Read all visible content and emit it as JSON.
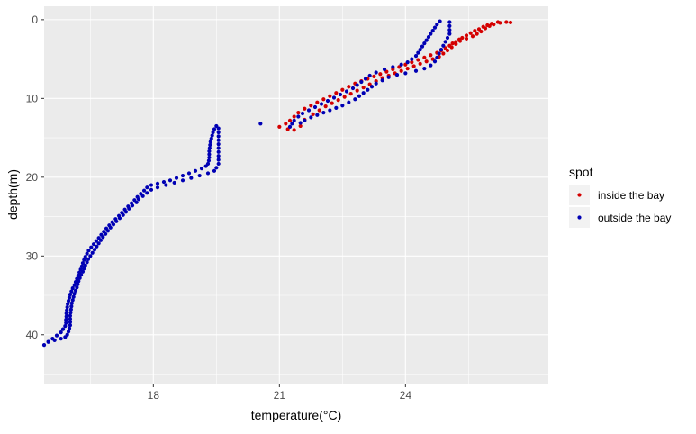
{
  "chart_data": {
    "type": "scatter",
    "title": "",
    "xlabel": "temperature(°C)",
    "ylabel": "depth(m)",
    "xlim": [
      15.4,
      27.4
    ],
    "ylim": [
      46.2,
      -1.7
    ],
    "y_reversed": true,
    "x_ticks": [
      18,
      21,
      24
    ],
    "y_ticks": [
      0,
      10,
      20,
      30,
      40
    ],
    "grid": true,
    "legend": {
      "title": "spot",
      "placement": "right"
    },
    "series": [
      {
        "name": "inside the bay",
        "color": "#D40000",
        "points": [
          [
            26.2,
            0.3
          ],
          [
            26.05,
            0.5
          ],
          [
            25.95,
            0.7
          ],
          [
            25.85,
            0.9
          ],
          [
            25.75,
            1.2
          ],
          [
            25.65,
            1.4
          ],
          [
            25.55,
            1.7
          ],
          [
            25.45,
            2.0
          ],
          [
            25.35,
            2.3
          ],
          [
            25.28,
            2.5
          ],
          [
            25.2,
            2.8
          ],
          [
            25.12,
            3.0
          ],
          [
            25.05,
            3.3
          ],
          [
            24.95,
            3.6
          ],
          [
            24.85,
            3.9
          ],
          [
            24.75,
            4.2
          ],
          [
            24.6,
            4.5
          ],
          [
            24.45,
            4.8
          ],
          [
            24.3,
            5.1
          ],
          [
            24.15,
            5.4
          ],
          [
            24.0,
            5.7
          ],
          [
            23.85,
            6.0
          ],
          [
            23.7,
            6.3
          ],
          [
            23.55,
            6.6
          ],
          [
            23.4,
            6.9
          ],
          [
            23.25,
            7.2
          ],
          [
            23.1,
            7.5
          ],
          [
            22.95,
            7.8
          ],
          [
            22.8,
            8.1
          ],
          [
            22.65,
            8.5
          ],
          [
            22.5,
            8.9
          ],
          [
            22.35,
            9.3
          ],
          [
            22.2,
            9.7
          ],
          [
            22.05,
            10.1
          ],
          [
            21.9,
            10.5
          ],
          [
            21.75,
            10.9
          ],
          [
            21.6,
            11.3
          ],
          [
            21.45,
            11.8
          ],
          [
            21.35,
            12.3
          ],
          [
            21.25,
            12.8
          ],
          [
            21.15,
            13.2
          ],
          [
            21.0,
            13.6
          ],
          [
            21.2,
            13.9
          ],
          [
            21.35,
            14.0
          ],
          [
            21.5,
            13.5
          ],
          [
            21.6,
            12.7
          ],
          [
            21.8,
            12.0
          ],
          [
            21.95,
            11.5
          ],
          [
            22.1,
            11.0
          ],
          [
            22.25,
            10.6
          ],
          [
            22.4,
            10.2
          ],
          [
            22.55,
            9.8
          ],
          [
            22.7,
            9.4
          ],
          [
            22.85,
            9.0
          ],
          [
            23.0,
            8.6
          ],
          [
            23.15,
            8.2
          ],
          [
            23.3,
            7.8
          ],
          [
            23.45,
            7.4
          ],
          [
            23.6,
            7.1
          ],
          [
            23.75,
            6.8
          ],
          [
            23.9,
            6.5
          ],
          [
            24.05,
            6.2
          ],
          [
            24.2,
            5.9
          ],
          [
            24.35,
            5.6
          ],
          [
            24.5,
            5.3
          ],
          [
            24.65,
            5.0
          ],
          [
            24.8,
            4.7
          ],
          [
            24.9,
            4.3
          ],
          [
            25.0,
            3.9
          ],
          [
            25.1,
            3.5
          ],
          [
            25.2,
            3.1
          ],
          [
            25.3,
            2.7
          ],
          [
            25.45,
            2.4
          ],
          [
            25.6,
            2.1
          ],
          [
            25.7,
            1.8
          ],
          [
            25.8,
            1.5
          ],
          [
            25.9,
            1.1
          ],
          [
            26.0,
            0.8
          ],
          [
            26.1,
            0.6
          ],
          [
            26.25,
            0.4
          ],
          [
            26.4,
            0.3
          ],
          [
            26.5,
            0.35
          ]
        ]
      },
      {
        "name": "outside the bay",
        "color": "#0000B4",
        "points": [
          [
            24.82,
            0.2
          ],
          [
            24.75,
            0.6
          ],
          [
            24.7,
            1.0
          ],
          [
            24.65,
            1.4
          ],
          [
            24.6,
            1.8
          ],
          [
            24.55,
            2.2
          ],
          [
            24.5,
            2.6
          ],
          [
            24.45,
            3.0
          ],
          [
            24.4,
            3.4
          ],
          [
            24.35,
            3.8
          ],
          [
            24.3,
            4.2
          ],
          [
            24.25,
            4.6
          ],
          [
            24.15,
            5.0
          ],
          [
            24.05,
            5.4
          ],
          [
            23.9,
            5.7
          ],
          [
            23.7,
            6.0
          ],
          [
            23.5,
            6.3
          ],
          [
            23.3,
            6.7
          ],
          [
            23.15,
            7.1
          ],
          [
            23.05,
            7.5
          ],
          [
            22.95,
            7.9
          ],
          [
            22.85,
            8.3
          ],
          [
            22.75,
            8.7
          ],
          [
            22.6,
            9.1
          ],
          [
            22.45,
            9.5
          ],
          [
            22.3,
            9.9
          ],
          [
            22.15,
            10.3
          ],
          [
            22.0,
            10.7
          ],
          [
            21.85,
            11.1
          ],
          [
            21.7,
            11.5
          ],
          [
            21.55,
            11.9
          ],
          [
            21.45,
            12.3
          ],
          [
            21.35,
            12.8
          ],
          [
            21.3,
            13.2
          ],
          [
            21.25,
            13.6
          ],
          [
            25.05,
            0.3
          ],
          [
            25.05,
            0.8
          ],
          [
            25.05,
            1.3
          ],
          [
            25.05,
            1.8
          ],
          [
            25.0,
            2.3
          ],
          [
            24.95,
            2.8
          ],
          [
            24.9,
            3.3
          ],
          [
            24.85,
            3.8
          ],
          [
            24.8,
            4.3
          ],
          [
            24.75,
            4.8
          ],
          [
            24.7,
            5.3
          ],
          [
            24.6,
            5.8
          ],
          [
            24.45,
            6.2
          ],
          [
            24.25,
            6.5
          ],
          [
            24.0,
            6.8
          ],
          [
            23.8,
            7.0
          ],
          [
            23.6,
            7.3
          ],
          [
            23.45,
            7.7
          ],
          [
            23.3,
            8.1
          ],
          [
            23.2,
            8.5
          ],
          [
            23.1,
            8.9
          ],
          [
            23.0,
            9.3
          ],
          [
            22.9,
            9.7
          ],
          [
            22.8,
            10.1
          ],
          [
            22.65,
            10.5
          ],
          [
            22.5,
            10.9
          ],
          [
            22.35,
            11.2
          ],
          [
            22.2,
            11.5
          ],
          [
            22.05,
            11.8
          ],
          [
            21.9,
            12.1
          ],
          [
            21.75,
            12.4
          ],
          [
            21.6,
            12.8
          ],
          [
            21.5,
            13.1
          ],
          [
            20.55,
            13.2
          ],
          [
            19.5,
            13.5
          ],
          [
            19.45,
            13.9
          ],
          [
            19.42,
            14.3
          ],
          [
            19.4,
            14.7
          ],
          [
            19.38,
            15.1
          ],
          [
            19.36,
            15.5
          ],
          [
            19.35,
            15.9
          ],
          [
            19.34,
            16.3
          ],
          [
            19.33,
            16.7
          ],
          [
            19.33,
            17.1
          ],
          [
            19.33,
            17.5
          ],
          [
            19.32,
            17.9
          ],
          [
            19.3,
            18.3
          ],
          [
            19.25,
            18.6
          ],
          [
            19.15,
            18.9
          ],
          [
            19.0,
            19.2
          ],
          [
            18.85,
            19.5
          ],
          [
            18.7,
            19.8
          ],
          [
            18.55,
            20.1
          ],
          [
            18.4,
            20.4
          ],
          [
            18.25,
            20.6
          ],
          [
            18.1,
            20.8
          ],
          [
            17.95,
            21.0
          ],
          [
            19.55,
            13.8
          ],
          [
            19.55,
            14.3
          ],
          [
            19.55,
            14.8
          ],
          [
            19.55,
            15.3
          ],
          [
            19.55,
            15.8
          ],
          [
            19.55,
            16.3
          ],
          [
            19.55,
            16.8
          ],
          [
            19.55,
            17.3
          ],
          [
            19.55,
            17.8
          ],
          [
            19.55,
            18.3
          ],
          [
            19.5,
            18.8
          ],
          [
            19.45,
            19.2
          ],
          [
            19.3,
            19.5
          ],
          [
            19.1,
            19.8
          ],
          [
            18.9,
            20.1
          ],
          [
            18.7,
            20.4
          ],
          [
            18.5,
            20.7
          ],
          [
            18.3,
            21.0
          ],
          [
            18.1,
            21.3
          ],
          [
            17.95,
            21.6
          ],
          [
            17.85,
            22.0
          ],
          [
            17.75,
            22.4
          ],
          [
            17.65,
            22.8
          ],
          [
            17.6,
            23.2
          ],
          [
            17.5,
            23.6
          ],
          [
            17.42,
            24.0
          ],
          [
            17.35,
            24.4
          ],
          [
            17.28,
            24.8
          ],
          [
            17.2,
            25.2
          ],
          [
            17.12,
            25.6
          ],
          [
            17.05,
            26.0
          ],
          [
            16.98,
            26.4
          ],
          [
            16.92,
            26.8
          ],
          [
            16.86,
            27.2
          ],
          [
            16.8,
            27.6
          ],
          [
            16.75,
            28.0
          ],
          [
            16.7,
            28.4
          ],
          [
            16.65,
            28.8
          ],
          [
            17.85,
            21.3
          ],
          [
            17.78,
            21.7
          ],
          [
            17.7,
            22.1
          ],
          [
            17.62,
            22.5
          ],
          [
            17.55,
            22.9
          ],
          [
            17.48,
            23.3
          ],
          [
            17.4,
            23.7
          ],
          [
            17.32,
            24.1
          ],
          [
            17.25,
            24.5
          ],
          [
            17.18,
            24.9
          ],
          [
            17.1,
            25.3
          ],
          [
            17.02,
            25.7
          ],
          [
            16.95,
            26.1
          ],
          [
            16.88,
            26.5
          ],
          [
            16.82,
            26.9
          ],
          [
            16.76,
            27.3
          ],
          [
            16.7,
            27.7
          ],
          [
            16.64,
            28.1
          ],
          [
            16.58,
            28.5
          ],
          [
            16.52,
            28.9
          ],
          [
            16.46,
            29.3
          ],
          [
            16.42,
            29.7
          ],
          [
            16.38,
            30.1
          ],
          [
            16.35,
            30.5
          ],
          [
            16.32,
            30.9
          ],
          [
            16.3,
            31.3
          ],
          [
            16.27,
            31.7
          ],
          [
            16.24,
            32.1
          ],
          [
            16.21,
            32.5
          ],
          [
            16.18,
            32.9
          ],
          [
            16.15,
            33.3
          ],
          [
            16.12,
            33.7
          ],
          [
            16.08,
            34.1
          ],
          [
            16.05,
            34.5
          ],
          [
            16.02,
            34.9
          ],
          [
            16.0,
            35.3
          ],
          [
            15.98,
            35.7
          ],
          [
            15.96,
            36.1
          ],
          [
            15.95,
            36.5
          ],
          [
            15.94,
            36.9
          ],
          [
            15.93,
            37.3
          ],
          [
            15.93,
            37.7
          ],
          [
            15.92,
            38.1
          ],
          [
            15.92,
            38.5
          ],
          [
            15.9,
            38.9
          ],
          [
            15.85,
            39.3
          ],
          [
            15.8,
            39.7
          ],
          [
            15.7,
            40.1
          ],
          [
            15.6,
            40.5
          ],
          [
            15.5,
            40.9
          ],
          [
            15.4,
            41.3
          ],
          [
            15.3,
            41.7
          ],
          [
            15.2,
            42.1
          ],
          [
            15.1,
            42.5
          ],
          [
            15.0,
            42.9
          ],
          [
            14.9,
            43.3
          ],
          [
            14.8,
            43.7
          ],
          [
            14.75,
            44.0
          ],
          [
            16.6,
            29.2
          ],
          [
            16.55,
            29.6
          ],
          [
            16.5,
            30.0
          ],
          [
            16.45,
            30.4
          ],
          [
            16.42,
            30.8
          ],
          [
            16.38,
            31.2
          ],
          [
            16.35,
            31.6
          ],
          [
            16.32,
            32.0
          ],
          [
            16.28,
            32.4
          ],
          [
            16.25,
            32.8
          ],
          [
            16.22,
            33.2
          ],
          [
            16.2,
            33.6
          ],
          [
            16.18,
            34.0
          ],
          [
            16.15,
            34.4
          ],
          [
            16.12,
            34.8
          ],
          [
            16.1,
            35.2
          ],
          [
            16.08,
            35.6
          ],
          [
            16.06,
            36.0
          ],
          [
            16.05,
            36.4
          ],
          [
            16.04,
            36.8
          ],
          [
            16.03,
            37.2
          ],
          [
            16.02,
            37.6
          ],
          [
            16.02,
            38.0
          ],
          [
            16.02,
            38.4
          ],
          [
            16.02,
            38.8
          ],
          [
            16.0,
            39.2
          ],
          [
            15.98,
            39.6
          ],
          [
            15.95,
            40.0
          ],
          [
            15.9,
            40.3
          ],
          [
            15.8,
            40.5
          ],
          [
            15.65,
            40.7
          ],
          [
            15.5,
            40.9
          ],
          [
            15.35,
            41.1
          ],
          [
            15.2,
            41.4
          ],
          [
            15.05,
            41.7
          ],
          [
            14.92,
            42.0
          ],
          [
            14.82,
            42.4
          ],
          [
            14.78,
            42.8
          ],
          [
            14.76,
            43.2
          ],
          [
            14.76,
            43.6
          ]
        ]
      }
    ]
  }
}
